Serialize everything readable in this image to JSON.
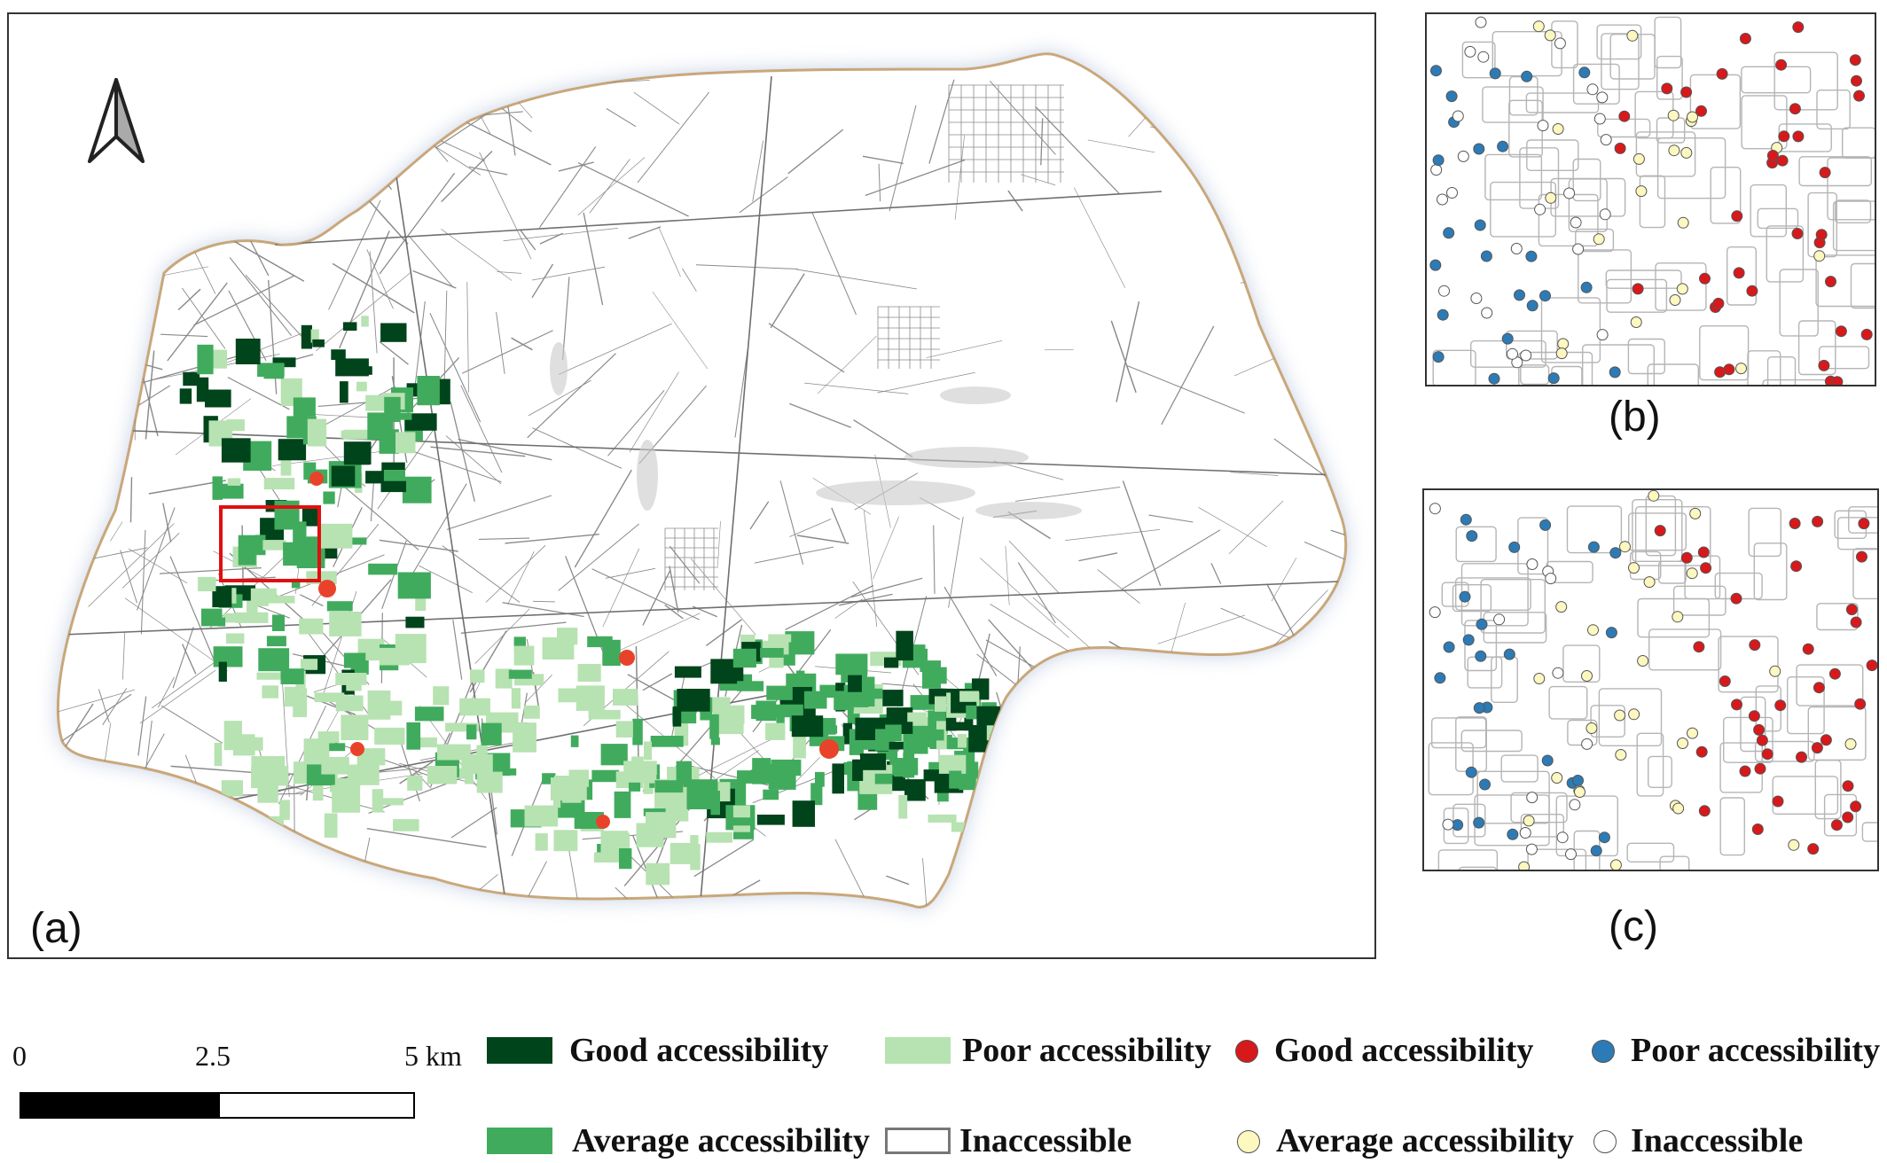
{
  "panels": {
    "a_label": "(a)",
    "b_label": "(b)",
    "c_label": "(c)"
  },
  "scale_bar": {
    "tick_start": "0",
    "tick_mid": "2.5",
    "tick_end": "5 km"
  },
  "legend": {
    "polygons": {
      "good": "Good accessibility",
      "average": "Average accessibility",
      "poor": "Poor accessibility",
      "inaccessible": "Inaccessible"
    },
    "points": {
      "good": "Good accessibility",
      "average": "Average accessibility",
      "poor": "Poor accessibility",
      "inaccessible": "Inaccessible"
    }
  },
  "colors": {
    "polygon_good": "#00441b",
    "polygon_average": "#41ab5d",
    "polygon_poor": "#b7e2b1",
    "polygon_inaccessible": "#ffffff",
    "point_good": "#d7191c",
    "point_average": "#fdf7c0",
    "point_poor": "#2c7bb6",
    "point_inaccessible": "#ffffff",
    "facility_marker": "#e8432a",
    "inset_frame": "#e01010",
    "boundary": "#c9a77a",
    "roads": "#8a8a8a"
  },
  "icons": {
    "north_arrow": "north-arrow-icon"
  }
}
